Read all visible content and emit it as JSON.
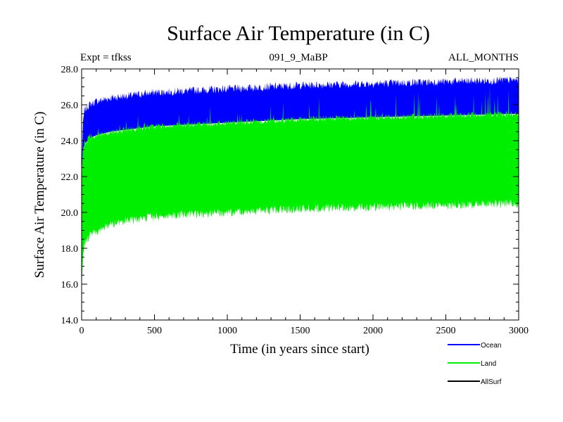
{
  "chart_data": {
    "type": "area",
    "title": "Surface Air Temperature (in C)",
    "expt_label": "Expt = tfkss",
    "subtitle_center": "091_9_MaBP",
    "subtitle_right": "ALL_MONTHS",
    "xlabel": "Time (in years since start)",
    "ylabel": "Surface Air Temperature (in C)",
    "xlim": [
      0,
      3000
    ],
    "ylim": [
      14.0,
      28.0
    ],
    "x_ticks": [
      0,
      500,
      1000,
      1500,
      2000,
      2500,
      3000
    ],
    "x_tick_labels": [
      "0",
      "500",
      "1000",
      "1500",
      "2000",
      "2500",
      "3000"
    ],
    "y_ticks": [
      14.0,
      16.0,
      18.0,
      20.0,
      22.0,
      24.0,
      26.0,
      28.0
    ],
    "y_tick_labels": [
      "14.0",
      "16.0",
      "18.0",
      "20.0",
      "22.0",
      "24.0",
      "26.0",
      "28.0"
    ],
    "series": [
      {
        "name": "Ocean",
        "color": "#0000ff",
        "x": [
          0,
          10,
          20,
          50,
          100,
          200,
          300,
          500,
          750,
          1000,
          1250,
          1500,
          1750,
          2000,
          2250,
          2500,
          2750,
          3000
        ],
        "upper": [
          22.3,
          25.0,
          25.6,
          25.9,
          26.1,
          26.3,
          26.4,
          26.6,
          26.7,
          26.8,
          26.9,
          27.0,
          27.05,
          27.1,
          27.15,
          27.2,
          27.25,
          27.3
        ],
        "lower": [
          22.0,
          23.5,
          23.8,
          24.1,
          24.3,
          24.5,
          24.6,
          24.8,
          24.9,
          25.0,
          25.1,
          25.2,
          25.25,
          25.3,
          25.35,
          25.4,
          25.45,
          25.5
        ]
      },
      {
        "name": "Land",
        "color": "#00ee00",
        "x": [
          0,
          10,
          20,
          50,
          100,
          200,
          300,
          500,
          750,
          1000,
          1250,
          1500,
          1750,
          2000,
          2250,
          2500,
          2750,
          3000
        ],
        "upper": [
          22.0,
          23.5,
          23.8,
          24.1,
          24.3,
          24.5,
          24.6,
          24.8,
          24.9,
          25.0,
          25.1,
          25.2,
          25.25,
          25.3,
          25.35,
          25.4,
          25.45,
          25.5
        ],
        "lower": [
          15.8,
          17.8,
          18.3,
          18.7,
          19.0,
          19.4,
          19.6,
          19.8,
          19.95,
          20.05,
          20.15,
          20.25,
          20.3,
          20.35,
          20.4,
          20.45,
          20.5,
          20.55
        ],
        "noise_up": [
          0.3,
          0.4,
          0.4,
          0.45,
          0.5,
          0.6,
          0.7,
          0.8,
          0.9,
          1.0,
          1.1,
          1.2,
          1.3,
          1.4,
          1.5,
          1.6,
          1.7,
          1.8
        ]
      },
      {
        "name": "AllSurf",
        "color": "#000000"
      }
    ],
    "legend": [
      {
        "name": "Ocean",
        "color": "#0000ff"
      },
      {
        "name": "Land",
        "color": "#00ee00"
      },
      {
        "name": "AllSurf",
        "color": "#000000"
      }
    ]
  }
}
